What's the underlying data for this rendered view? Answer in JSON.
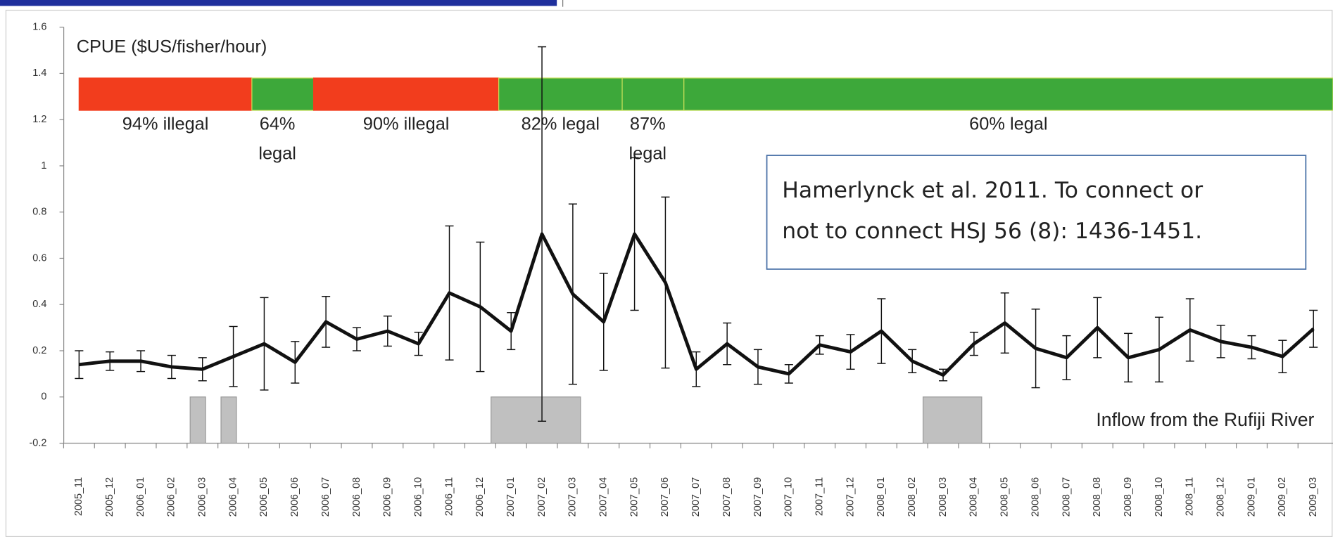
{
  "chart_data": {
    "type": "line",
    "y_label": "CPUE ($US/fisher/hour)",
    "categories": [
      "2005_11",
      "2005_12",
      "2006_01",
      "2006_02",
      "2006_03",
      "2006_04",
      "2006_05",
      "2006_06",
      "2006_07",
      "2006_08",
      "2006_09",
      "2006_10",
      "2006_11",
      "2006_12",
      "2007_01",
      "2007_02",
      "2007_03",
      "2007_04",
      "2007_05",
      "2007_06",
      "2007_07",
      "2007_08",
      "2007_09",
      "2007_10",
      "2007_11",
      "2007_12",
      "2008_01",
      "2008_02",
      "2008_03",
      "2008_04",
      "2008_05",
      "2008_06",
      "2008_07",
      "2008_08",
      "2008_09",
      "2008_10",
      "2008_11",
      "2008_12",
      "2009_01",
      "2009_02",
      "2009_03"
    ],
    "values": [
      0.14,
      0.155,
      0.155,
      0.13,
      0.12,
      0.175,
      0.23,
      0.15,
      0.325,
      0.25,
      0.285,
      0.23,
      0.45,
      0.39,
      0.285,
      0.705,
      0.445,
      0.325,
      0.705,
      0.495,
      0.12,
      0.23,
      0.13,
      0.1,
      0.225,
      0.195,
      0.285,
      0.155,
      0.095,
      0.23,
      0.32,
      0.21,
      0.17,
      0.3,
      0.17,
      0.205,
      0.29,
      0.24,
      0.215,
      0.175,
      0.295
    ],
    "errors": [
      0.06,
      0.04,
      0.045,
      0.05,
      0.05,
      0.13,
      0.2,
      0.09,
      0.11,
      0.05,
      0.065,
      0.05,
      0.29,
      0.28,
      0.08,
      0.81,
      0.39,
      0.21,
      0.33,
      0.37,
      0.075,
      0.09,
      0.075,
      0.04,
      0.04,
      0.075,
      0.14,
      0.05,
      0.025,
      0.05,
      0.13,
      0.17,
      0.095,
      0.13,
      0.105,
      0.14,
      0.135,
      0.07,
      0.05,
      0.07,
      0.08
    ],
    "color": "#111111",
    "ylim": [
      -0.2,
      1.6
    ],
    "yticks": [
      {
        "value": -0.2,
        "label": "-0.2"
      },
      0,
      {
        "value": 0.2,
        "label": "0.2"
      },
      {
        "value": 0.4,
        "label": "0.4"
      },
      {
        "value": 0.6,
        "label": "0.6"
      },
      {
        "value": 0.8,
        "label": "0.8"
      },
      1,
      {
        "value": 1.2,
        "label": "1.2"
      },
      {
        "value": 1.4,
        "label": "1.4"
      },
      {
        "value": 1.6,
        "label": "1.6"
      }
    ],
    "legality_band": {
      "range": [
        1.24,
        1.38
      ],
      "segments": [
        {
          "start": "2005_11",
          "end": "2006_04",
          "lines": [
            "94% illegal"
          ],
          "color": "#f23d1d"
        },
        {
          "start": "2006_05",
          "end": "2006_06",
          "lines": [
            "64%",
            "legal"
          ],
          "color": "#3da83a"
        },
        {
          "start": "2006_07",
          "end": "2006_12",
          "lines": [
            "90% illegal"
          ],
          "color": "#f23d1d"
        },
        {
          "start": "2007_01",
          "end": "2007_04",
          "lines": [
            "82% legal"
          ],
          "color": "#3da83a"
        },
        {
          "start": "2007_05",
          "end": "2007_06",
          "lines": [
            "87%",
            "legal"
          ],
          "color": "#3da83a"
        },
        {
          "start": "2007_07",
          "end": "2009_03",
          "lines": [
            "60% legal"
          ],
          "color": "#3da83a"
        }
      ]
    },
    "inflow": {
      "label": "Inflow from the Rufiji River",
      "value": -0.2,
      "color": "#c0c0c0",
      "periods": [
        [
          "2006_03",
          "2006_03"
        ],
        [
          "2006_04",
          "2006_04"
        ],
        [
          "2007_01",
          "2007_03"
        ],
        [
          "2008_03",
          "2008_04"
        ]
      ]
    },
    "annotation": [
      "Hamerlynck et al. 2011. To connect or",
      "not to connect HSJ 56 (8): 1436-1451."
    ]
  }
}
